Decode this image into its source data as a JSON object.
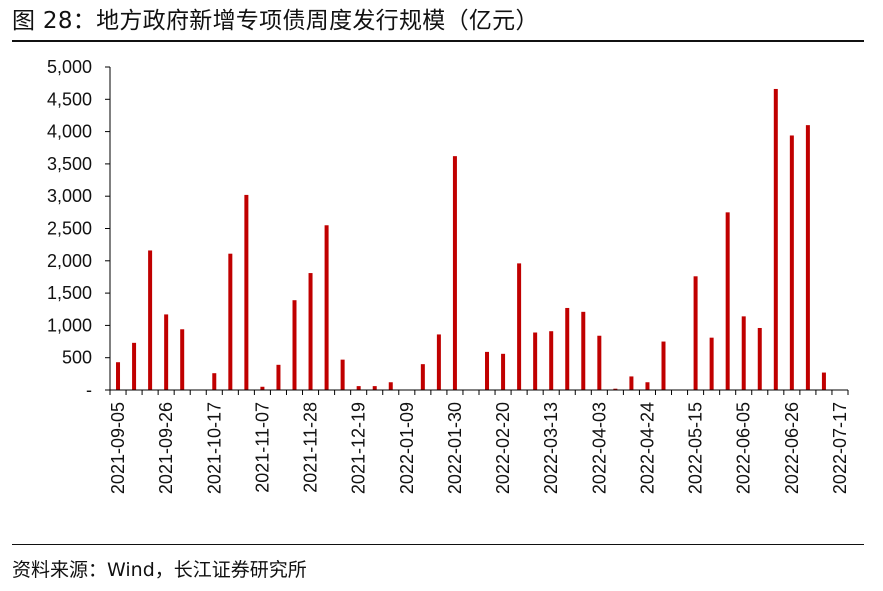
{
  "figure": {
    "title": "图 28：地方政府新增专项债周度发行规模（亿元）",
    "source": "资料来源：Wind，长江证券研究所"
  },
  "colors": {
    "bar": "#C00000",
    "axis": "#000000",
    "text": "#111111"
  },
  "chart_data": {
    "type": "bar",
    "title": "地方政府新增专项债周度发行规模（亿元）",
    "ylabel": "",
    "xlabel": "",
    "ylim": [
      0,
      5000
    ],
    "y_ticks": [
      {
        "value": 0,
        "label": "-"
      },
      {
        "value": 500,
        "label": "500"
      },
      {
        "value": 1000,
        "label": "1,000"
      },
      {
        "value": 1500,
        "label": "1,500"
      },
      {
        "value": 2000,
        "label": "2,000"
      },
      {
        "value": 2500,
        "label": "2,500"
      },
      {
        "value": 3000,
        "label": "3,000"
      },
      {
        "value": 3500,
        "label": "3,500"
      },
      {
        "value": 4000,
        "label": "4,000"
      },
      {
        "value": 4500,
        "label": "4,500"
      },
      {
        "value": 5000,
        "label": "5,000"
      }
    ],
    "x_tick_labels": [
      "2021-09-05",
      "2021-09-26",
      "2021-10-17",
      "2021-11-07",
      "2021-11-28",
      "2021-12-19",
      "2022-01-09",
      "2022-01-30",
      "2022-02-20",
      "2022-03-13",
      "2022-04-03",
      "2022-04-24",
      "2022-05-15",
      "2022-06-05",
      "2022-06-26",
      "2022-07-17"
    ],
    "label_every": 3,
    "categories": [
      "2021-09-05",
      "2021-09-12",
      "2021-09-19",
      "2021-09-26",
      "2021-10-03",
      "2021-10-10",
      "2021-10-17",
      "2021-10-24",
      "2021-10-31",
      "2021-11-07",
      "2021-11-14",
      "2021-11-21",
      "2021-11-28",
      "2021-12-05",
      "2021-12-12",
      "2021-12-19",
      "2021-12-26",
      "2022-01-02",
      "2022-01-09",
      "2022-01-16",
      "2022-01-23",
      "2022-01-30",
      "2022-02-06",
      "2022-02-13",
      "2022-02-20",
      "2022-02-27",
      "2022-03-06",
      "2022-03-13",
      "2022-03-20",
      "2022-03-27",
      "2022-04-03",
      "2022-04-10",
      "2022-04-17",
      "2022-04-24",
      "2022-05-01",
      "2022-05-08",
      "2022-05-15",
      "2022-05-22",
      "2022-05-29",
      "2022-06-05",
      "2022-06-12",
      "2022-06-19",
      "2022-06-26",
      "2022-07-03",
      "2022-07-10",
      "2022-07-17"
    ],
    "values": [
      430,
      730,
      2160,
      1170,
      940,
      0,
      260,
      2110,
      3020,
      50,
      390,
      1390,
      1810,
      2550,
      470,
      60,
      60,
      120,
      0,
      400,
      860,
      3620,
      0,
      590,
      560,
      1960,
      890,
      910,
      1270,
      1210,
      840,
      20,
      210,
      120,
      750,
      0,
      1760,
      810,
      2750,
      1140,
      960,
      4660,
      3940,
      4100,
      270,
      0
    ]
  }
}
